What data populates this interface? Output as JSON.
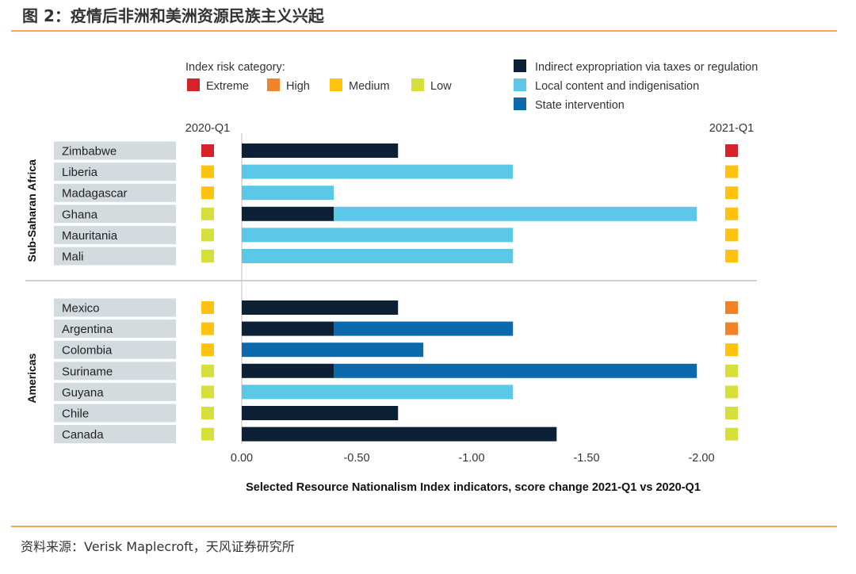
{
  "page": {
    "title": "图 2：疫情后非洲和美洲资源民族主义兴起",
    "source": "资料来源：Verisk Maplecroft，天风证券研究所"
  },
  "colors": {
    "extreme": "#d4232a",
    "high": "#f28228",
    "medium": "#ffc20e",
    "low": "#d7df3a",
    "indirect": "#0d2136",
    "local": "#5ac8e6",
    "state": "#0a6aad",
    "label_bg": "#d3dbdf",
    "axis": "#bfbfbf",
    "rule": "#f0a860"
  },
  "chart_data": {
    "type": "bar",
    "orientation": "horizontal",
    "stacked": true,
    "title": "Selected Resource Nationalism Index indicators, score change 2021-Q1 vs 2020-Q1",
    "xlim": [
      0,
      -2.0
    ],
    "x_ticks": [
      "0.00",
      "-0.50",
      "-1.00",
      "-1.50",
      "-2.00"
    ],
    "x_tick_values": [
      0,
      -0.5,
      -1.0,
      -1.5,
      -2.0
    ],
    "risk_legend_title": "Index risk category:",
    "risk_legend": [
      {
        "key": "extreme",
        "label": "Extreme"
      },
      {
        "key": "high",
        "label": "High"
      },
      {
        "key": "medium",
        "label": "Medium"
      },
      {
        "key": "low",
        "label": "Low"
      }
    ],
    "series_legend": [
      {
        "key": "indirect",
        "label": "Indirect expropriation via taxes or regulation"
      },
      {
        "key": "local",
        "label": "Local content and indigenisation"
      },
      {
        "key": "state",
        "label": "State intervention"
      }
    ],
    "col_left": "2020-Q1",
    "col_right": "2021-Q1",
    "groups": [
      {
        "name": "Sub-Saharan Africa",
        "rows": [
          {
            "country": "Zimbabwe",
            "q2020": "extreme",
            "q2021": "extreme",
            "indirect": -0.68,
            "local": 0,
            "state": 0
          },
          {
            "country": "Liberia",
            "q2020": "medium",
            "q2021": "medium",
            "indirect": 0,
            "local": -1.18,
            "state": 0
          },
          {
            "country": "Madagascar",
            "q2020": "medium",
            "q2021": "medium",
            "indirect": 0,
            "local": -0.4,
            "state": 0
          },
          {
            "country": "Ghana",
            "q2020": "low",
            "q2021": "medium",
            "indirect": -0.4,
            "local": -1.58,
            "state": 0
          },
          {
            "country": "Mauritania",
            "q2020": "low",
            "q2021": "medium",
            "indirect": 0,
            "local": -1.18,
            "state": 0
          },
          {
            "country": "Mali",
            "q2020": "low",
            "q2021": "medium",
            "indirect": 0,
            "local": -1.18,
            "state": 0
          }
        ]
      },
      {
        "name": "Americas",
        "rows": [
          {
            "country": "Mexico",
            "q2020": "medium",
            "q2021": "high",
            "indirect": -0.68,
            "local": 0,
            "state": 0
          },
          {
            "country": "Argentina",
            "q2020": "medium",
            "q2021": "high",
            "indirect": -0.4,
            "local": 0,
            "state": -0.78
          },
          {
            "country": "Colombia",
            "q2020": "medium",
            "q2021": "medium",
            "indirect": 0,
            "local": 0,
            "state": -0.79
          },
          {
            "country": "Suriname",
            "q2020": "low",
            "q2021": "low",
            "indirect": -0.4,
            "local": 0,
            "state": -1.58
          },
          {
            "country": "Guyana",
            "q2020": "low",
            "q2021": "low",
            "indirect": 0,
            "local": -1.18,
            "state": 0
          },
          {
            "country": "Chile",
            "q2020": "low",
            "q2021": "low",
            "indirect": -0.68,
            "local": 0,
            "state": 0
          },
          {
            "country": "Canada",
            "q2020": "low",
            "q2021": "low",
            "indirect": -1.37,
            "local": 0,
            "state": 0
          }
        ]
      }
    ]
  }
}
